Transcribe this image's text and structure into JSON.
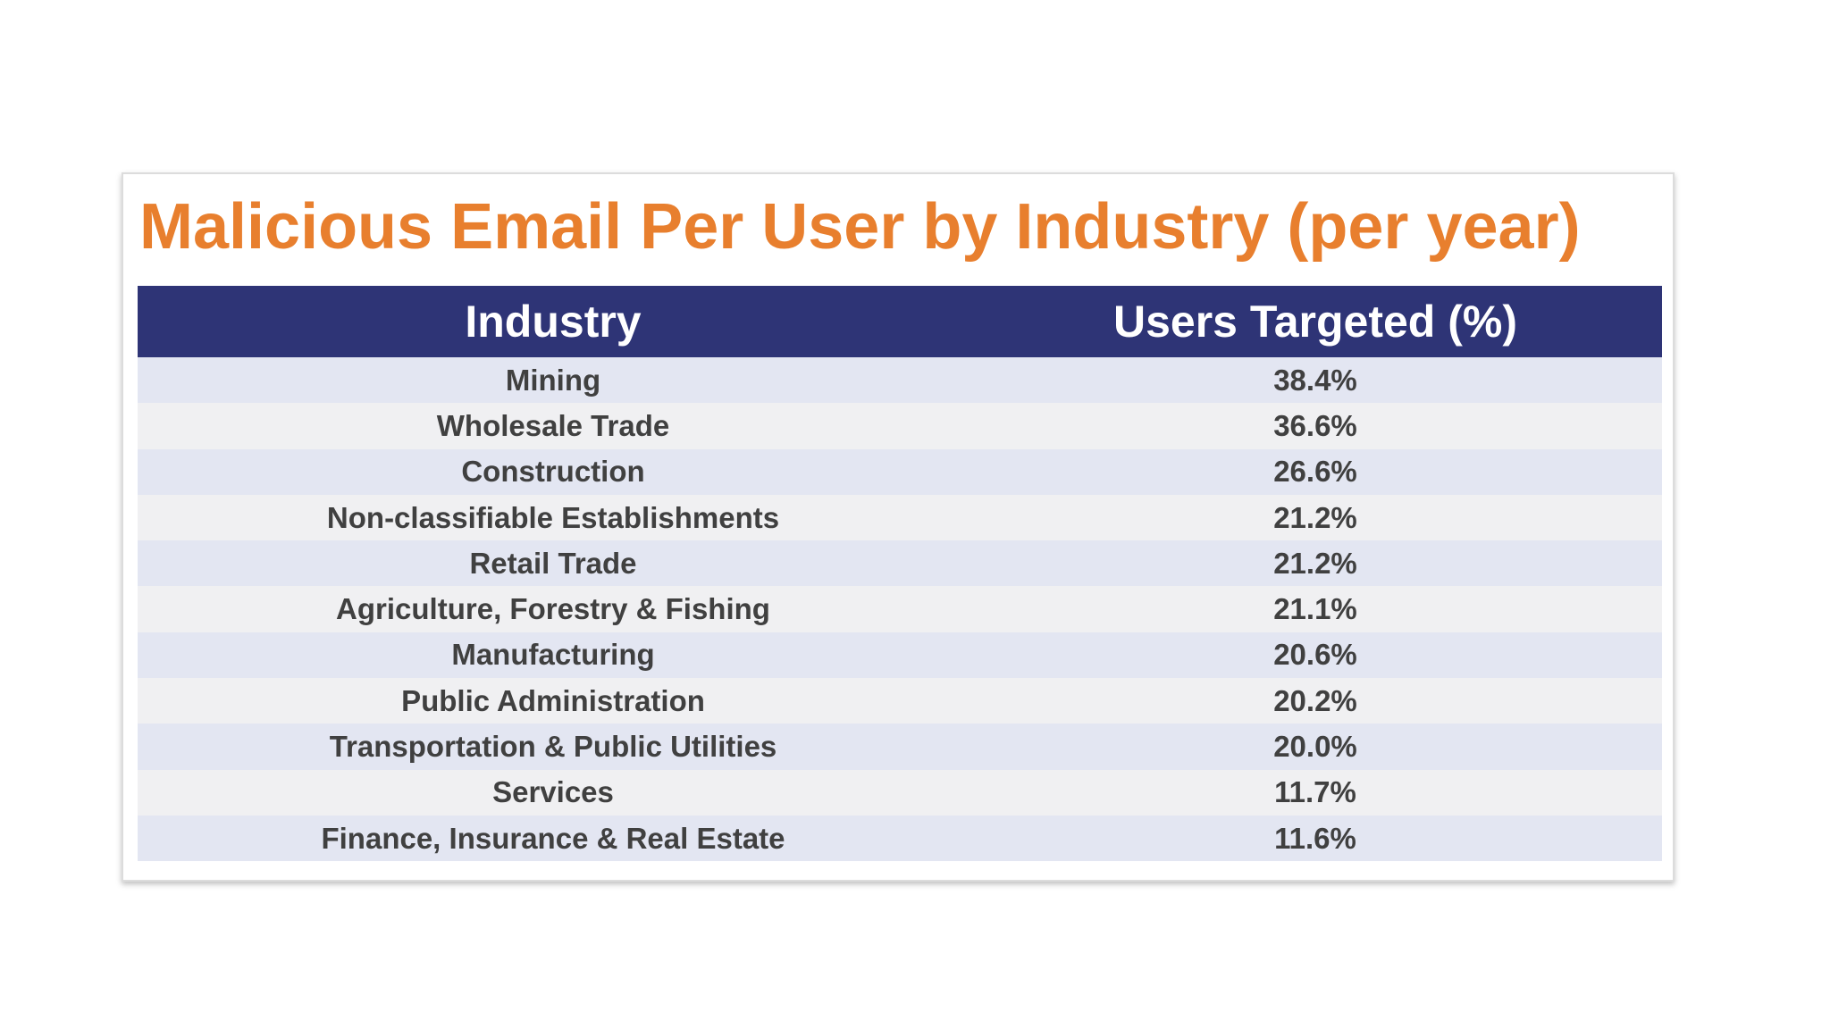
{
  "chart_data": {
    "type": "table",
    "title": "Malicious Email Per User by Industry (per year)",
    "columns": [
      "Industry",
      "Users Targeted (%)"
    ],
    "rows": [
      {
        "industry": "Mining",
        "value": "38.4%"
      },
      {
        "industry": "Wholesale Trade",
        "value": "36.6%"
      },
      {
        "industry": "Construction",
        "value": "26.6%"
      },
      {
        "industry": "Non-classifiable Establishments",
        "value": "21.2%"
      },
      {
        "industry": "Retail Trade",
        "value": "21.2%"
      },
      {
        "industry": "Agriculture, Forestry & Fishing",
        "value": "21.1%"
      },
      {
        "industry": "Manufacturing",
        "value": "20.6%"
      },
      {
        "industry": "Public Administration",
        "value": "20.2%"
      },
      {
        "industry": "Transportation & Public Utilities",
        "value": "20.0%"
      },
      {
        "industry": "Services",
        "value": "11.7%"
      },
      {
        "industry": "Finance, Insurance & Real Estate",
        "value": "11.6%"
      }
    ]
  },
  "colors": {
    "title": "#e87f2e",
    "header_bg": "#2e3476",
    "header_text": "#ffffff",
    "row_odd": "#e3e6f2",
    "row_even": "#f0f0f2",
    "cell_text": "#404040"
  }
}
